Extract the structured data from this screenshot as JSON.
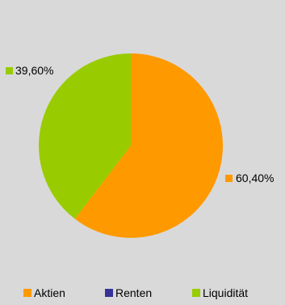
{
  "chart_data": {
    "type": "pie",
    "title": "",
    "slices": [
      {
        "label": "Aktien",
        "value": 60.4,
        "display": "60,40%",
        "color": "#ff9900"
      },
      {
        "label": "Renten",
        "value": 0,
        "display": "",
        "color": "#333399"
      },
      {
        "label": "Liquidität",
        "value": 39.6,
        "display": "39,60%",
        "color": "#99cc00"
      }
    ],
    "legend_position": "bottom"
  }
}
